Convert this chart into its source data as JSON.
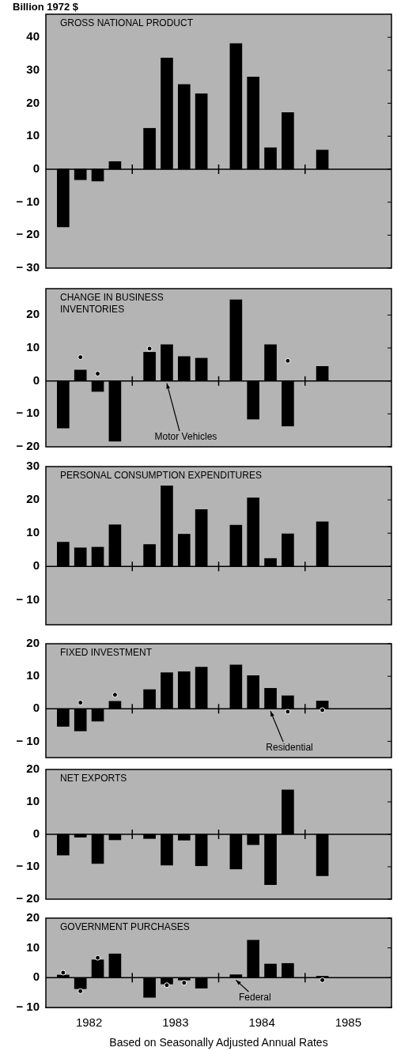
{
  "chart_data": [
    {
      "type": "bar",
      "title": "GROSS NATIONAL PRODUCT",
      "ylabel": "Billion 1972 $",
      "x": [
        1982.2,
        1982.4,
        1982.6,
        1982.8,
        1983.2,
        1983.4,
        1983.6,
        1983.8,
        1984.2,
        1984.4,
        1984.6,
        1984.8,
        1985.2
      ],
      "series": [
        {
          "color": "#000000",
          "values": [
            -17.5,
            -3.2,
            -3.6,
            2.3,
            12.4,
            33.7,
            25.7,
            22.9,
            38.1,
            28.0,
            6.5,
            17.2,
            5.8
          ]
        }
      ],
      "xlim": [
        1982,
        1986
      ],
      "xticks": [
        {
          "value": 1983,
          "label": null
        },
        {
          "value": 1984,
          "label": null
        },
        {
          "value": 1985,
          "label": null
        }
      ],
      "ylim": [
        -30,
        47
      ],
      "yticks": [
        {
          "value": -30,
          "label": "− 30"
        },
        {
          "value": -20,
          "label": "− 20"
        },
        {
          "value": -10,
          "label": "− 10"
        },
        0,
        10,
        20,
        30,
        40
      ],
      "tick_labels": "y",
      "ref_lines": [
        {
          "axis": "y",
          "value": 0,
          "color": "#000000"
        }
      ]
    },
    {
      "type": "bar",
      "title": "CHANGE IN BUSINESS\nINVENTORIES",
      "x": [
        1982.2,
        1982.4,
        1982.6,
        1982.8,
        1983.2,
        1983.4,
        1983.6,
        1983.8,
        1984.2,
        1984.4,
        1984.6,
        1984.8,
        1985.2
      ],
      "series": [
        {
          "color": "#000000",
          "values": [
            -14.3,
            3.3,
            -3.2,
            -18.3,
            8.7,
            11.0,
            7.4,
            6.9,
            24.6,
            -11.6,
            11.0,
            -13.7,
            4.4
          ]
        },
        {
          "type": "scatter",
          "color": "#000000",
          "values": [
            null,
            7.2,
            2.2,
            null,
            9.8,
            null,
            null,
            null,
            null,
            null,
            null,
            6.1,
            null
          ]
        }
      ],
      "marker": "circle",
      "xlim": [
        1982,
        1986
      ],
      "xticks": [
        {
          "value": 1983,
          "label": null
        },
        {
          "value": 1984,
          "label": null
        },
        {
          "value": 1985,
          "label": null
        }
      ],
      "ylim": [
        -20,
        28
      ],
      "yticks": [
        {
          "value": -20,
          "label": "− 20"
        },
        {
          "value": -10,
          "label": "− 10"
        },
        0,
        10,
        20
      ],
      "tick_labels": "y",
      "ref_lines": [
        {
          "axis": "y",
          "value": 0,
          "color": "#000000"
        }
      ],
      "annotations": [
        {
          "text": "Motor Vehicles",
          "x": 1983.4,
          "y": 0
        }
      ]
    },
    {
      "type": "bar",
      "title": "PERSONAL CONSUMPTION EXPENDITURES",
      "x": [
        1982.2,
        1982.4,
        1982.6,
        1982.8,
        1983.2,
        1983.4,
        1983.6,
        1983.8,
        1984.2,
        1984.4,
        1984.6,
        1984.8,
        1985.2
      ],
      "series": [
        {
          "color": "#000000",
          "values": [
            7.3,
            5.6,
            5.8,
            12.5,
            6.6,
            24.2,
            9.7,
            17.1,
            12.4,
            20.6,
            2.4,
            9.8,
            13.4
          ]
        }
      ],
      "xlim": [
        1982,
        1986
      ],
      "xticks": [
        {
          "value": 1983,
          "label": null
        },
        {
          "value": 1984,
          "label": null
        },
        {
          "value": 1985,
          "label": null
        }
      ],
      "ylim": [
        -17.5,
        30
      ],
      "yticks": [
        {
          "value": -10,
          "label": "− 10"
        },
        0,
        10,
        20,
        30
      ],
      "tick_labels": "y",
      "ref_lines": [
        {
          "axis": "y",
          "value": 0,
          "color": "#000000"
        }
      ]
    },
    {
      "type": "bar",
      "title": "FIXED INVESTMENT",
      "x": [
        1982.2,
        1982.4,
        1982.6,
        1982.8,
        1983.2,
        1983.4,
        1983.6,
        1983.8,
        1984.2,
        1984.4,
        1984.6,
        1984.8,
        1985.2
      ],
      "series": [
        {
          "color": "#000000",
          "values": [
            -5.4,
            -6.8,
            -3.8,
            2.3,
            5.9,
            11.1,
            11.4,
            12.8,
            13.5,
            10.2,
            6.3,
            4.0,
            2.4
          ]
        },
        {
          "type": "scatter",
          "color": "#000000",
          "values": [
            null,
            1.9,
            null,
            4.3,
            null,
            null,
            null,
            null,
            null,
            null,
            null,
            -0.9,
            -0.4
          ]
        }
      ],
      "marker": "circle",
      "xlim": [
        1982,
        1986
      ],
      "xticks": [
        {
          "value": 1983,
          "label": null
        },
        {
          "value": 1984,
          "label": null
        },
        {
          "value": 1985,
          "label": null
        }
      ],
      "ylim": [
        -15,
        20
      ],
      "yticks": [
        {
          "value": -10,
          "label": "− 10"
        },
        0,
        10,
        20
      ],
      "tick_labels": "y",
      "ref_lines": [
        {
          "axis": "y",
          "value": 0,
          "color": "#000000"
        }
      ],
      "annotations": [
        {
          "text": "Residential",
          "x": 1984.6,
          "y": 0
        }
      ]
    },
    {
      "type": "bar",
      "title": "NET EXPORTS",
      "x": [
        1982.2,
        1982.4,
        1982.6,
        1982.8,
        1983.2,
        1983.4,
        1983.6,
        1983.8,
        1984.2,
        1984.4,
        1984.6,
        1984.8,
        1985.2
      ],
      "series": [
        {
          "color": "#000000",
          "values": [
            -6.4,
            -0.9,
            -9.0,
            -1.7,
            -1.3,
            -9.5,
            -1.8,
            -9.7,
            -10.7,
            -3.2,
            -15.5,
            13.7,
            -12.8
          ]
        }
      ],
      "xlim": [
        1982,
        1986
      ],
      "xticks": [
        {
          "value": 1983,
          "label": null
        },
        {
          "value": 1984,
          "label": null
        },
        {
          "value": 1985,
          "label": null
        }
      ],
      "ylim": [
        -20,
        20
      ],
      "yticks": [
        {
          "value": -20,
          "label": "− 20"
        },
        {
          "value": -10,
          "label": "− 10"
        },
        0,
        10,
        20
      ],
      "tick_labels": "y",
      "ref_lines": [
        {
          "axis": "y",
          "value": 0,
          "color": "#000000"
        }
      ]
    },
    {
      "type": "bar",
      "title": "GOVERNMENT PURCHASES",
      "x": [
        1982.2,
        1982.4,
        1982.6,
        1982.8,
        1983.2,
        1983.4,
        1983.6,
        1983.8,
        1984.2,
        1984.4,
        1984.6,
        1984.8,
        1985.2
      ],
      "series": [
        {
          "color": "#000000",
          "values": [
            0.9,
            -3.7,
            6.0,
            8.0,
            -6.6,
            -2.1,
            -0.8,
            -3.5,
            1.0,
            12.6,
            4.6,
            4.8,
            0.5
          ]
        },
        {
          "type": "scatter",
          "color": "#000000",
          "values": [
            1.7,
            -4.5,
            6.7,
            null,
            null,
            -2.5,
            -1.7,
            null,
            null,
            null,
            null,
            null,
            -0.8
          ]
        }
      ],
      "marker": "circle",
      "xlim": [
        1982,
        1986
      ],
      "xticks": [
        {
          "value": 1982.5,
          "label": "1982"
        },
        {
          "value": 1983,
          "label": null
        },
        {
          "value": 1983.5,
          "label": "1983"
        },
        {
          "value": 1984,
          "label": null
        },
        {
          "value": 1984.5,
          "label": "1984"
        },
        {
          "value": 1985,
          "label": null
        },
        {
          "value": 1985.5,
          "label": "1985"
        }
      ],
      "ylim": [
        -10,
        20
      ],
      "yticks": [
        {
          "value": -10,
          "label": "− 10"
        },
        0,
        10,
        20
      ],
      "ref_lines": [
        {
          "axis": "y",
          "value": 0,
          "color": "#000000"
        }
      ],
      "annotations": [
        {
          "text": "Federal",
          "x": 1984.2,
          "y": 0
        },
        "Based on Seasonally Adjusted Annual Rates"
      ]
    }
  ]
}
